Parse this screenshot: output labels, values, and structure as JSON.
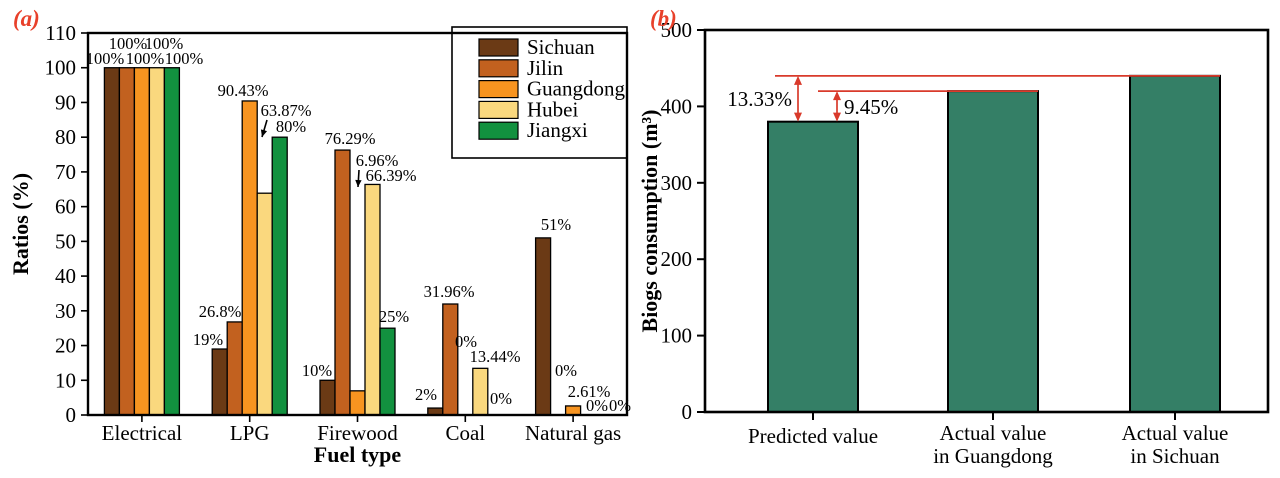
{
  "chart_data": [
    {
      "id": "a",
      "type": "bar",
      "panel_label": "(a)",
      "panel_label_color": "#e8402a",
      "title": "",
      "xlabel": "Fuel type",
      "ylabel": "Ratios (%)",
      "ylim": [
        0,
        110
      ],
      "ytick_step": 10,
      "grid": false,
      "legend_position": "top-right-inside",
      "categories": [
        "Electrical",
        "LPG",
        "Firewood",
        "Coal",
        "Natural gas"
      ],
      "series": [
        {
          "name": "Sichuan",
          "color": "#6b3a15",
          "values": [
            100,
            19,
            10,
            2,
            51
          ],
          "labels": [
            "100%",
            "19%",
            "10%",
            "2%",
            "51%"
          ]
        },
        {
          "name": "Jilin",
          "color": "#c2611f",
          "values": [
            100,
            26.8,
            76.29,
            31.96,
            0
          ],
          "labels": [
            "100%",
            "26.8%",
            "76.29%",
            "31.96%",
            "0%"
          ]
        },
        {
          "name": "Guangdong",
          "color": "#f79420",
          "values": [
            100,
            90.43,
            6.96,
            0,
            2.61
          ],
          "labels": [
            "100%",
            "90.43%",
            "6.96%",
            "0%",
            "2.61%"
          ]
        },
        {
          "name": "Hubei",
          "color": "#fad87e",
          "values": [
            100,
            63.87,
            66.39,
            13.44,
            0
          ],
          "labels": [
            "100%",
            "63.87%",
            "66.39%",
            "13.44%",
            "0%"
          ]
        },
        {
          "name": "Jiangxi",
          "color": "#12913f",
          "values": [
            100,
            80,
            25,
            0,
            0
          ],
          "labels": [
            "100%",
            "80%",
            "25%",
            "0%",
            "0%"
          ]
        }
      ],
      "legend": [
        "Sichuan",
        "Jilin",
        "Guangdong",
        "Hubei",
        "Jiangxi"
      ]
    },
    {
      "id": "b",
      "type": "bar",
      "panel_label": "(b)",
      "panel_label_color": "#e8402a",
      "title": "",
      "xlabel": "",
      "ylabel": "Biogs consumption (m³)",
      "ylim": [
        0,
        500
      ],
      "ytick_step": 100,
      "grid": false,
      "categories": [
        "Predicted value",
        "Actual value\nin Guangdong",
        "Actual value\nin Sichuan"
      ],
      "values": [
        380,
        420,
        440
      ],
      "bar_color": "#347f66",
      "annotation_color": "#d93a2b",
      "annotations": [
        {
          "label": "13.33%",
          "from_value": 440,
          "to_value": 380
        },
        {
          "label": "9.45%",
          "from_value": 420,
          "to_value": 380
        }
      ]
    }
  ]
}
